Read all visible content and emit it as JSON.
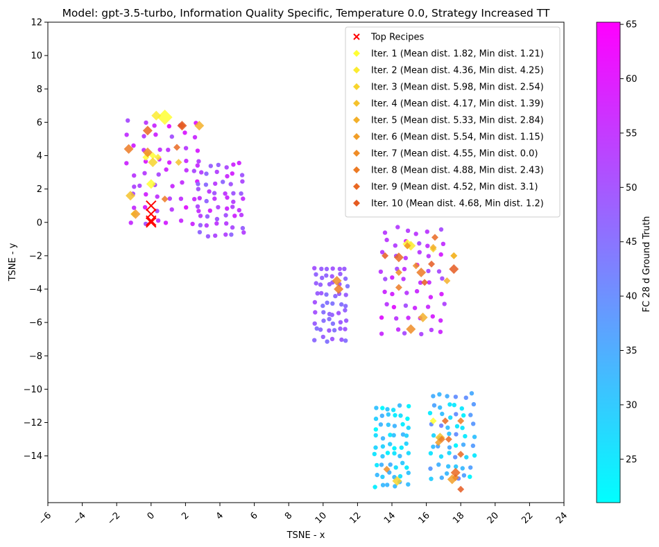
{
  "chart_data": {
    "type": "scatter",
    "title": "Model: gpt-3.5-turbo, Information Quality Specific, Temperature 0.0, Strategy Increased TT",
    "xlabel": "TSNE - x",
    "ylabel": "TSNE - y",
    "xlim": [
      -6,
      24
    ],
    "ylim": [
      -16.8,
      12
    ],
    "xticks": [
      -6,
      -4,
      -2,
      0,
      2,
      4,
      6,
      8,
      10,
      12,
      14,
      16,
      18,
      20,
      22,
      24
    ],
    "xtick_labels": [
      "−6",
      "−4",
      "−2",
      "0",
      "2",
      "4",
      "6",
      "8",
      "10",
      "12",
      "14",
      "16",
      "18",
      "20",
      "22",
      "24"
    ],
    "yticks": [
      12,
      10,
      8,
      6,
      4,
      2,
      0,
      -2,
      -4,
      -6,
      -8,
      -10,
      -12,
      -14
    ],
    "ytick_labels": [
      "12",
      "10",
      "8",
      "6",
      "4",
      "2",
      "0",
      "−2",
      "−4",
      "−6",
      "−8",
      "−10",
      "−12",
      "−14"
    ],
    "grid": false,
    "legend_position": "top-right",
    "colorbar": {
      "label": "FC 28 d Ground Truth",
      "min": 21,
      "max": 65.2,
      "ticks": [
        25,
        30,
        35,
        40,
        45,
        50,
        55,
        60,
        65
      ],
      "colormap": "cool",
      "color_low": "#00ffff",
      "color_high": "#ff00ff"
    },
    "background_points": {
      "clusters": [
        {
          "name": "cluster-a",
          "x_range": [
            -1.6,
            3.0
          ],
          "y_range": [
            -0.3,
            6.3
          ],
          "fc_range": [
            50,
            60
          ]
        },
        {
          "name": "cluster-b",
          "x_range": [
            2.6,
            5.5
          ],
          "y_range": [
            -1.0,
            3.7
          ],
          "fc_range": [
            46,
            58
          ]
        },
        {
          "name": "cluster-c",
          "x_range": [
            9.4,
            11.5
          ],
          "y_range": [
            -7.3,
            -2.4
          ],
          "fc_range": [
            44,
            50
          ]
        },
        {
          "name": "cluster-d",
          "x_range": [
            13.2,
            17.2
          ],
          "y_range": [
            -6.9,
            -0.1
          ],
          "fc_range": [
            50,
            60
          ]
        },
        {
          "name": "cluster-e",
          "x_range": [
            12.9,
            15.1
          ],
          "y_range": [
            -16.0,
            -10.8
          ],
          "fc_range": [
            22,
            35
          ]
        },
        {
          "name": "cluster-f",
          "x_range": [
            16.1,
            18.9
          ],
          "y_range": [
            -15.5,
            -10.1
          ],
          "fc_range": [
            22,
            42
          ]
        }
      ]
    },
    "top_recipes": {
      "label": "Top Recipes",
      "color": "#ff0000",
      "points": [
        [
          0.0,
          1.0
        ],
        [
          0.0,
          0.5
        ],
        [
          0.0,
          0.1
        ],
        [
          0.0,
          0.0
        ]
      ]
    },
    "series": [
      {
        "name": "Iter. 1 (Mean dist. 1.82, Min dist. 1.21)",
        "color": "#ffff33",
        "points": [
          [
            0.8,
            6.3
          ],
          [
            0.1,
            4.0
          ],
          [
            -0.3,
            3.9
          ],
          [
            0.0,
            2.3
          ],
          [
            -1.0,
            0.5
          ],
          [
            16.4,
            -11.9
          ],
          [
            14.9,
            -1.3
          ]
        ]
      },
      {
        "name": "Iter. 2 (Mean dist. 4.36, Min dist. 4.25)",
        "color": "#fbeb30",
        "points": [
          [
            0.3,
            6.4
          ],
          [
            -0.2,
            4.1
          ],
          [
            0.4,
            3.9
          ],
          [
            15.1,
            -1.4
          ]
        ]
      },
      {
        "name": "Iter. 3 (Mean dist. 5.98, Min dist. 2.54)",
        "color": "#f7d42d",
        "points": [
          [
            0.1,
            3.6
          ],
          [
            16.4,
            -1.6
          ],
          [
            17.6,
            -2.0
          ],
          [
            14.3,
            -15.5
          ]
        ]
      },
      {
        "name": "Iter. 4 (Mean dist. 4.17, Min dist. 1.39)",
        "color": "#f5c22b",
        "points": [
          [
            -1.2,
            1.6
          ],
          [
            1.6,
            3.6
          ],
          [
            14.9,
            -1.4
          ],
          [
            16.8,
            -12.9
          ]
        ]
      },
      {
        "name": "Iter. 5 (Mean dist. 5.33, Min dist. 2.84)",
        "color": "#f3b02a",
        "points": [
          [
            2.8,
            5.8
          ],
          [
            16.4,
            -1.5
          ],
          [
            17.6,
            -2.0
          ],
          [
            15.8,
            -5.7
          ],
          [
            17.2,
            -3.5
          ]
        ]
      },
      {
        "name": "Iter. 6 (Mean dist. 5.54, Min dist. 1.15)",
        "color": "#f19e28",
        "points": [
          [
            -0.9,
            0.5
          ],
          [
            14.9,
            -1.4
          ],
          [
            16.7,
            -13.2
          ],
          [
            17.5,
            -15.4
          ]
        ]
      },
      {
        "name": "Iter. 7 (Mean dist. 4.55, Min dist. 0.0)",
        "color": "#ef8c26",
        "points": [
          [
            -0.2,
            4.2
          ],
          [
            14.4,
            -3.0
          ],
          [
            15.4,
            -2.6
          ],
          [
            15.1,
            -6.4
          ],
          [
            13.7,
            -14.8
          ],
          [
            17.7,
            -15.3
          ],
          [
            10.8,
            -3.5
          ]
        ]
      },
      {
        "name": "Iter. 8 (Mean dist. 4.88, Min dist. 2.43)",
        "color": "#ec7a24",
        "points": [
          [
            -1.3,
            4.4
          ],
          [
            0.8,
            1.4
          ],
          [
            14.4,
            -3.9
          ],
          [
            15.7,
            -3.0
          ],
          [
            18.0,
            -11.9
          ],
          [
            16.9,
            -13.0
          ],
          [
            10.9,
            -4.0
          ]
        ]
      },
      {
        "name": "Iter. 9 (Mean dist. 4.52, Min dist. 3.1)",
        "color": "#e96822",
        "points": [
          [
            -0.2,
            5.5
          ],
          [
            1.8,
            5.8
          ],
          [
            1.5,
            4.5
          ],
          [
            14.4,
            -2.1
          ],
          [
            16.5,
            -0.9
          ],
          [
            17.1,
            -11.9
          ],
          [
            17.7,
            -15.0
          ],
          [
            17.3,
            -13.0
          ],
          [
            18.0,
            -13.9
          ]
        ]
      },
      {
        "name": "Iter. 10 (Mean dist. 4.68, Min dist. 1.2)",
        "color": "#e55b21",
        "points": [
          [
            1.8,
            5.8
          ],
          [
            13.6,
            -2.0
          ],
          [
            16.3,
            -2.5
          ],
          [
            17.6,
            -2.8
          ],
          [
            18.0,
            -16.0
          ],
          [
            15.9,
            -3.6
          ]
        ]
      }
    ]
  }
}
